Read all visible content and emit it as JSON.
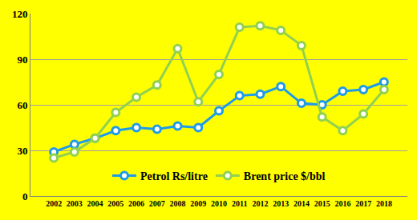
{
  "chart_data": {
    "type": "line",
    "categories": [
      "2002",
      "2003",
      "2004",
      "2005",
      "2006",
      "2007",
      "2008",
      "2009",
      "2010",
      "2011",
      "2012",
      "2013",
      "2014",
      "2015",
      "2016",
      "2017",
      "2018"
    ],
    "series": [
      {
        "name": "Petrol Rs/litre",
        "color": "#1e9be8",
        "marker": "circle",
        "values": [
          29,
          34,
          38,
          43,
          45,
          44,
          46,
          45,
          56,
          66,
          67,
          72,
          61,
          60,
          69,
          70,
          75
        ]
      },
      {
        "name": "Brent price $/bbl",
        "color": "#92d050",
        "marker": "circle",
        "values": [
          25,
          29,
          38,
          55,
          65,
          73,
          97,
          62,
          80,
          111,
          112,
          109,
          99,
          52,
          43,
          54,
          70
        ]
      }
    ],
    "ylim": [
      0,
      120
    ],
    "yticks": [
      0,
      30,
      60,
      90,
      120
    ],
    "grid": true,
    "legend": "bottom"
  }
}
